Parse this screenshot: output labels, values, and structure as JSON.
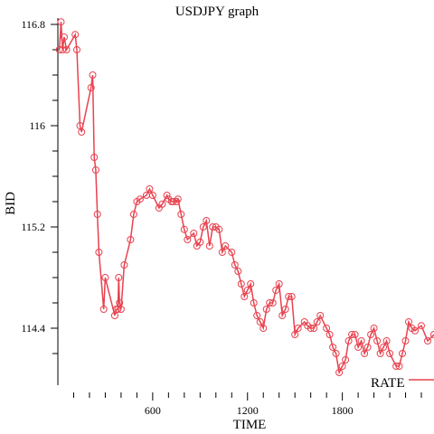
{
  "chart_data": {
    "type": "line",
    "title": "USDJPY graph",
    "xlabel": "TIME",
    "ylabel": "BID",
    "xlim": [
      0,
      2380
    ],
    "ylim": [
      113.95,
      116.85
    ],
    "xticks": [
      600,
      1200,
      1800
    ],
    "xtick_labels": [
      "600",
      "1200",
      "1800"
    ],
    "yticks": [
      114.4,
      115.2,
      116.0,
      116.8
    ],
    "ytick_labels": [
      "114.4",
      "115.2",
      "116",
      "116.8"
    ],
    "grid": false,
    "legend": {
      "entries": [
        "RATE"
      ],
      "placement": "bottom-right"
    },
    "colors": {
      "series": "#e8424f"
    },
    "series": [
      {
        "name": "RATE",
        "x": [
          10,
          20,
          30,
          40,
          55,
          110,
          120,
          140,
          150,
          210,
          220,
          230,
          240,
          250,
          260,
          290,
          300,
          360,
          370,
          380,
          385,
          390,
          400,
          420,
          460,
          480,
          500,
          520,
          560,
          580,
          600,
          640,
          660,
          690,
          700,
          720,
          730,
          750,
          760,
          780,
          800,
          820,
          860,
          880,
          900,
          920,
          940,
          960,
          980,
          1000,
          1020,
          1040,
          1060,
          1100,
          1120,
          1140,
          1160,
          1180,
          1200,
          1220,
          1240,
          1260,
          1280,
          1300,
          1320,
          1340,
          1360,
          1380,
          1400,
          1420,
          1440,
          1460,
          1480,
          1500,
          1520,
          1560,
          1580,
          1600,
          1620,
          1640,
          1660,
          1700,
          1720,
          1740,
          1760,
          1780,
          1800,
          1820,
          1840,
          1860,
          1880,
          1900,
          1920,
          1940,
          1960,
          1980,
          2000,
          2020,
          2040,
          2060,
          2080,
          2100,
          2140,
          2160,
          2180,
          2200,
          2220,
          2240,
          2260,
          2300,
          2340,
          2380
        ],
        "y": [
          116.6,
          116.82,
          116.6,
          116.7,
          116.6,
          116.72,
          116.6,
          116.0,
          115.95,
          116.3,
          116.4,
          115.75,
          115.65,
          115.3,
          115.0,
          114.55,
          114.8,
          114.5,
          114.55,
          114.55,
          114.8,
          114.6,
          114.55,
          114.9,
          115.1,
          115.3,
          115.4,
          115.42,
          115.45,
          115.5,
          115.45,
          115.35,
          115.38,
          115.45,
          115.42,
          115.4,
          115.4,
          115.4,
          115.42,
          115.3,
          115.18,
          115.1,
          115.15,
          115.05,
          115.08,
          115.2,
          115.25,
          115.05,
          115.2,
          115.2,
          115.18,
          115.0,
          115.05,
          115.0,
          114.9,
          114.85,
          114.75,
          114.65,
          114.7,
          114.75,
          114.6,
          114.5,
          114.45,
          114.4,
          114.55,
          114.6,
          114.6,
          114.7,
          114.75,
          114.5,
          114.55,
          114.65,
          114.65,
          114.35,
          114.4,
          114.45,
          114.42,
          114.4,
          114.4,
          114.45,
          114.5,
          114.4,
          114.35,
          114.25,
          114.2,
          114.05,
          114.1,
          114.15,
          114.3,
          114.35,
          114.35,
          114.25,
          114.3,
          114.2,
          114.25,
          114.35,
          114.4,
          114.3,
          114.2,
          114.25,
          114.3,
          114.2,
          114.1,
          114.1,
          114.2,
          114.3,
          114.45,
          114.4,
          114.38,
          114.42,
          114.3,
          114.35
        ]
      }
    ]
  }
}
